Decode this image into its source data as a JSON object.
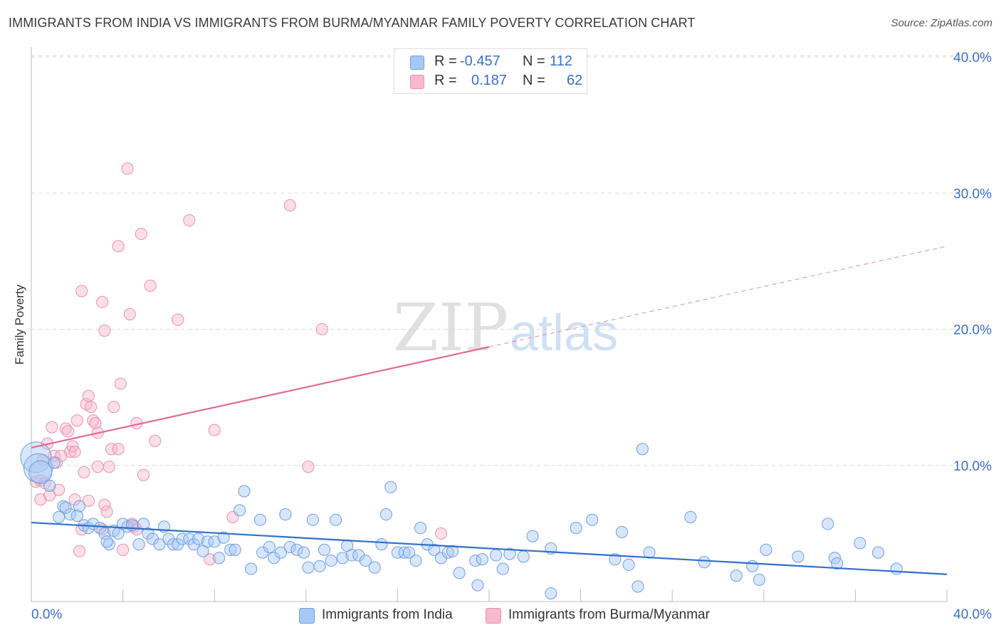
{
  "header": {
    "title": "IMMIGRANTS FROM INDIA VS IMMIGRANTS FROM BURMA/MYANMAR FAMILY POVERTY CORRELATION CHART",
    "source": "Source: ZipAtlas.com"
  },
  "watermark": {
    "part1": "ZIP",
    "part2": "atlas"
  },
  "stats": [
    {
      "swatch_color": "#a8c8f4",
      "r_label": "R =",
      "r_value": "-0.457",
      "n_label": "N =",
      "n_value": "112"
    },
    {
      "swatch_color": "#f7b9cc",
      "r_label": "R =",
      "r_value": "0.187",
      "n_label": "N =",
      "n_value": "62"
    }
  ],
  "legend": {
    "india": "Immigrants from India",
    "burma": "Immigrants from Burma/Myanmar"
  },
  "colors": {
    "india_fill": "#a8c8f4",
    "india_stroke": "#6d9fe0",
    "india_line": "#2f6fcf",
    "burma_fill": "#f7b9cc",
    "burma_stroke": "#ec8fab",
    "burma_line": "#e06a94",
    "axis_label": "#3a6fcc",
    "grid": "#d8d8d8"
  },
  "chart_data": {
    "type": "scatter",
    "title": "IMMIGRANTS FROM INDIA VS IMMIGRANTS FROM BURMA/MYANMAR FAMILY POVERTY CORRELATION CHART",
    "xlabel": "",
    "ylabel": "Family Poverty",
    "xlim": [
      0,
      40
    ],
    "ylim": [
      0,
      40
    ],
    "x_tick_labels": [
      "0.0%",
      "40.0%"
    ],
    "y_ticks": [
      10,
      20,
      30,
      40
    ],
    "y_tick_labels": [
      "10.0%",
      "20.0%",
      "30.0%",
      "40.0%"
    ],
    "grid": true,
    "legend_position": "bottom",
    "series": [
      {
        "name": "Immigrants from India",
        "color": "#a8c8f4",
        "trend": {
          "x": [
            0,
            40
          ],
          "y": [
            5.8,
            2.0
          ],
          "dashed_from": null
        },
        "points": [
          [
            0.2,
            10.6,
            1.6
          ],
          [
            0.3,
            9.8,
            1.5
          ],
          [
            0.4,
            9.5,
            1.2
          ],
          [
            0.8,
            8.5,
            0.6
          ],
          [
            1.0,
            10.2,
            0.6
          ],
          [
            1.4,
            7.0,
            0.6
          ],
          [
            1.2,
            6.2,
            0.6
          ],
          [
            1.7,
            6.4,
            0.6
          ],
          [
            2.1,
            7.0,
            0.6
          ],
          [
            2.3,
            5.6,
            0.6
          ],
          [
            2.5,
            5.4,
            0.6
          ],
          [
            2.7,
            5.7,
            0.6
          ],
          [
            3.0,
            5.4,
            0.6
          ],
          [
            3.2,
            5.0,
            0.6
          ],
          [
            3.4,
            4.2,
            0.6
          ],
          [
            3.6,
            5.2,
            0.6
          ],
          [
            3.8,
            5.0,
            0.6
          ],
          [
            4.0,
            5.7,
            0.6
          ],
          [
            4.2,
            5.5,
            0.6
          ],
          [
            4.4,
            5.6,
            0.6
          ],
          [
            4.7,
            4.2,
            0.6
          ],
          [
            4.9,
            5.7,
            0.6
          ],
          [
            5.1,
            5.0,
            0.6
          ],
          [
            5.3,
            4.6,
            0.6
          ],
          [
            5.6,
            4.2,
            0.6
          ],
          [
            5.8,
            5.5,
            0.6
          ],
          [
            6.0,
            4.6,
            0.6
          ],
          [
            6.2,
            4.2,
            0.6
          ],
          [
            6.4,
            4.2,
            0.6
          ],
          [
            6.6,
            4.6,
            0.6
          ],
          [
            6.9,
            4.6,
            0.6
          ],
          [
            7.1,
            4.2,
            0.6
          ],
          [
            7.3,
            4.6,
            0.6
          ],
          [
            7.5,
            3.7,
            0.6
          ],
          [
            7.7,
            4.4,
            0.6
          ],
          [
            8.0,
            4.4,
            0.6
          ],
          [
            8.2,
            3.2,
            0.6
          ],
          [
            8.4,
            4.7,
            0.6
          ],
          [
            8.7,
            3.8,
            0.6
          ],
          [
            8.9,
            3.8,
            0.6
          ],
          [
            9.1,
            6.7,
            0.6
          ],
          [
            9.3,
            8.1,
            0.6
          ],
          [
            9.6,
            2.4,
            0.6
          ],
          [
            10.0,
            6.0,
            0.6
          ],
          [
            10.1,
            3.6,
            0.6
          ],
          [
            10.4,
            4.0,
            0.6
          ],
          [
            10.6,
            3.2,
            0.6
          ],
          [
            10.9,
            3.6,
            0.6
          ],
          [
            11.1,
            6.4,
            0.6
          ],
          [
            11.3,
            4.0,
            0.6
          ],
          [
            11.6,
            3.8,
            0.6
          ],
          [
            11.9,
            3.6,
            0.6
          ],
          [
            12.1,
            2.5,
            0.6
          ],
          [
            12.3,
            6.0,
            0.6
          ],
          [
            12.6,
            2.6,
            0.6
          ],
          [
            12.8,
            3.8,
            0.6
          ],
          [
            13.1,
            3.0,
            0.6
          ],
          [
            13.3,
            6.0,
            0.6
          ],
          [
            13.6,
            3.2,
            0.6
          ],
          [
            13.8,
            4.1,
            0.6
          ],
          [
            14.0,
            3.4,
            0.6
          ],
          [
            14.3,
            3.4,
            0.6
          ],
          [
            14.6,
            3.0,
            0.6
          ],
          [
            15.0,
            2.5,
            0.6
          ],
          [
            15.3,
            4.2,
            0.6
          ],
          [
            15.5,
            6.4,
            0.6
          ],
          [
            15.7,
            8.4,
            0.6
          ],
          [
            16.0,
            3.6,
            0.6
          ],
          [
            16.3,
            3.6,
            0.6
          ],
          [
            16.5,
            3.6,
            0.6
          ],
          [
            16.8,
            3.0,
            0.6
          ],
          [
            17.0,
            5.4,
            0.6
          ],
          [
            17.3,
            4.2,
            0.6
          ],
          [
            17.6,
            3.8,
            0.6
          ],
          [
            17.9,
            3.2,
            0.6
          ],
          [
            18.2,
            3.6,
            0.6
          ],
          [
            18.4,
            3.7,
            0.6
          ],
          [
            18.7,
            2.1,
            0.6
          ],
          [
            19.4,
            3.0,
            0.6
          ],
          [
            19.5,
            1.2,
            0.6
          ],
          [
            19.7,
            3.1,
            0.6
          ],
          [
            20.3,
            3.4,
            0.6
          ],
          [
            20.6,
            2.4,
            0.6
          ],
          [
            20.9,
            3.5,
            0.6
          ],
          [
            21.5,
            3.3,
            0.6
          ],
          [
            21.9,
            4.8,
            0.6
          ],
          [
            22.7,
            0.6,
            0.6
          ],
          [
            22.7,
            3.9,
            0.6
          ],
          [
            23.8,
            5.4,
            0.6
          ],
          [
            24.5,
            6.0,
            0.6
          ],
          [
            25.5,
            3.1,
            0.6
          ],
          [
            25.8,
            5.1,
            0.6
          ],
          [
            26.1,
            2.7,
            0.6
          ],
          [
            26.5,
            1.1,
            0.6
          ],
          [
            27.0,
            3.6,
            0.6
          ],
          [
            26.7,
            11.2,
            0.6
          ],
          [
            28.8,
            6.2,
            0.6
          ],
          [
            29.4,
            2.9,
            0.6
          ],
          [
            30.8,
            1.9,
            0.6
          ],
          [
            31.5,
            2.6,
            0.6
          ],
          [
            31.8,
            1.6,
            0.6
          ],
          [
            32.1,
            3.8,
            0.6
          ],
          [
            33.5,
            3.3,
            0.6
          ],
          [
            34.8,
            5.7,
            0.6
          ],
          [
            35.1,
            3.2,
            0.6
          ],
          [
            35.2,
            2.8,
            0.6
          ],
          [
            36.2,
            4.3,
            0.6
          ],
          [
            37.0,
            3.6,
            0.6
          ],
          [
            37.8,
            2.4,
            0.6
          ],
          [
            1.5,
            6.9,
            0.6
          ],
          [
            2.0,
            6.3,
            0.6
          ],
          [
            3.3,
            4.4,
            0.6
          ]
        ]
      },
      {
        "name": "Immigrants from Burma/Myanmar",
        "color": "#f7b9cc",
        "trend": {
          "x": [
            0,
            40
          ],
          "y": [
            11.3,
            26.1
          ],
          "dashed_from": 20
        },
        "points": [
          [
            0.2,
            8.8,
            0.6
          ],
          [
            0.4,
            8.9,
            0.6
          ],
          [
            0.4,
            7.5,
            0.6
          ],
          [
            0.5,
            10.4,
            0.6
          ],
          [
            0.7,
            11.6,
            0.6
          ],
          [
            0.8,
            7.8,
            0.6
          ],
          [
            0.9,
            12.8,
            0.6
          ],
          [
            1.0,
            10.7,
            0.6
          ],
          [
            1.1,
            10.2,
            0.6
          ],
          [
            1.2,
            8.2,
            0.6
          ],
          [
            1.5,
            12.7,
            0.6
          ],
          [
            1.6,
            12.5,
            0.6
          ],
          [
            1.7,
            11.0,
            0.6
          ],
          [
            1.8,
            11.4,
            0.6
          ],
          [
            1.9,
            11.0,
            0.6
          ],
          [
            1.9,
            7.5,
            0.6
          ],
          [
            2.0,
            13.3,
            0.6
          ],
          [
            2.1,
            3.7,
            0.6
          ],
          [
            2.2,
            5.3,
            0.6
          ],
          [
            2.3,
            9.5,
            0.6
          ],
          [
            2.2,
            22.8,
            0.6
          ],
          [
            2.4,
            14.5,
            0.6
          ],
          [
            2.5,
            7.4,
            0.6
          ],
          [
            2.5,
            15.1,
            0.6
          ],
          [
            2.6,
            14.3,
            0.6
          ],
          [
            2.7,
            13.3,
            0.6
          ],
          [
            2.8,
            13.1,
            0.6
          ],
          [
            2.9,
            9.9,
            0.6
          ],
          [
            3.1,
            5.3,
            0.6
          ],
          [
            3.1,
            22.0,
            0.6
          ],
          [
            3.2,
            19.9,
            0.6
          ],
          [
            3.2,
            7.1,
            0.6
          ],
          [
            3.3,
            6.6,
            0.6
          ],
          [
            3.4,
            9.9,
            0.6
          ],
          [
            3.5,
            11.2,
            0.6
          ],
          [
            3.6,
            14.3,
            0.6
          ],
          [
            3.8,
            11.2,
            0.6
          ],
          [
            3.8,
            26.1,
            0.6
          ],
          [
            3.9,
            16.0,
            0.6
          ],
          [
            4.0,
            3.8,
            0.6
          ],
          [
            4.2,
            31.8,
            0.6
          ],
          [
            4.3,
            21.1,
            0.6
          ],
          [
            4.4,
            5.7,
            0.6
          ],
          [
            4.5,
            5.5,
            0.6
          ],
          [
            4.6,
            13.1,
            0.6
          ],
          [
            4.8,
            27.0,
            0.6
          ],
          [
            4.9,
            9.3,
            0.6
          ],
          [
            5.2,
            23.2,
            0.6
          ],
          [
            5.4,
            11.8,
            0.6
          ],
          [
            6.4,
            20.7,
            0.6
          ],
          [
            6.9,
            28.0,
            0.6
          ],
          [
            7.8,
            3.1,
            0.6
          ],
          [
            8.0,
            12.6,
            0.6
          ],
          [
            8.8,
            6.2,
            0.6
          ],
          [
            11.3,
            29.1,
            0.6
          ],
          [
            12.1,
            9.9,
            0.6
          ],
          [
            12.7,
            20.0,
            0.6
          ],
          [
            17.9,
            5.0,
            0.6
          ],
          [
            0.6,
            8.7,
            0.6
          ],
          [
            1.3,
            10.7,
            0.6
          ],
          [
            2.9,
            12.4,
            0.6
          ],
          [
            4.6,
            5.3,
            0.6
          ]
        ]
      }
    ]
  }
}
